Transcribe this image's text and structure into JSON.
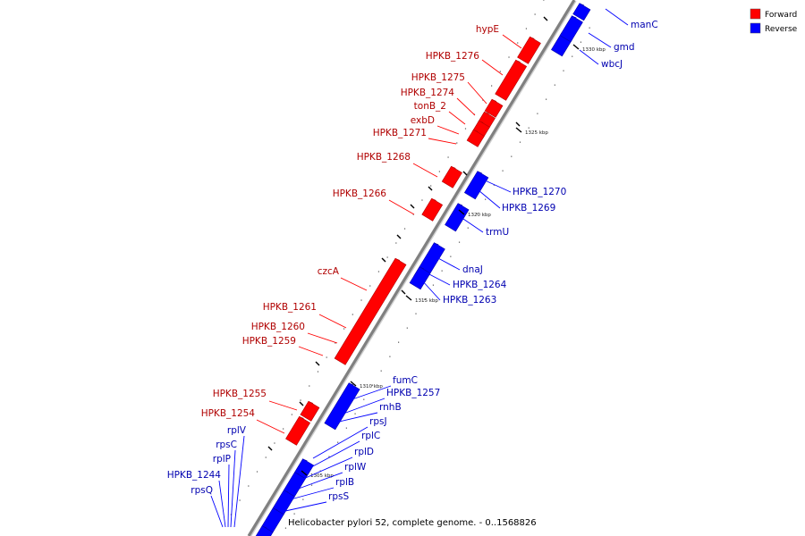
{
  "caption": "Helicobacter pylori 52, complete genome. - 0..1568826",
  "legend": [
    {
      "label": "Forward",
      "color": "#ff0000"
    },
    {
      "label": "Reverse",
      "color": "#0000ff"
    }
  ],
  "colors": {
    "forward": "#ff0000",
    "reverse": "#0000ff",
    "backbone": "#808080"
  },
  "ticks": [
    "1305 kbp",
    "1310 kbp",
    "1315 kbp",
    "1320 kbp",
    "1325 kbp",
    "1330 kbp"
  ],
  "forward_labels": [
    "hypE",
    "HPKB_1276",
    "HPKB_1275",
    "HPKB_1274",
    "tonB_2",
    "exbD",
    "HPKB_1271",
    "HPKB_1268",
    "HPKB_1266",
    "czcA",
    "HPKB_1261",
    "HPKB_1260",
    "HPKB_1259",
    "HPKB_1255",
    "HPKB_1254"
  ],
  "reverse_labels": [
    "manC",
    "gmd",
    "wbcJ",
    "HPKB_1270",
    "HPKB_1269",
    "trmU",
    "dnaJ",
    "HPKB_1264",
    "HPKB_1263",
    "fumC",
    "HPKB_1257",
    "rnhB",
    "rpsJ",
    "rplC",
    "rplD",
    "rplW",
    "rplB",
    "rpsS",
    "rplV",
    "rpsC",
    "rplP",
    "HPKB_1244",
    "rpsQ"
  ]
}
